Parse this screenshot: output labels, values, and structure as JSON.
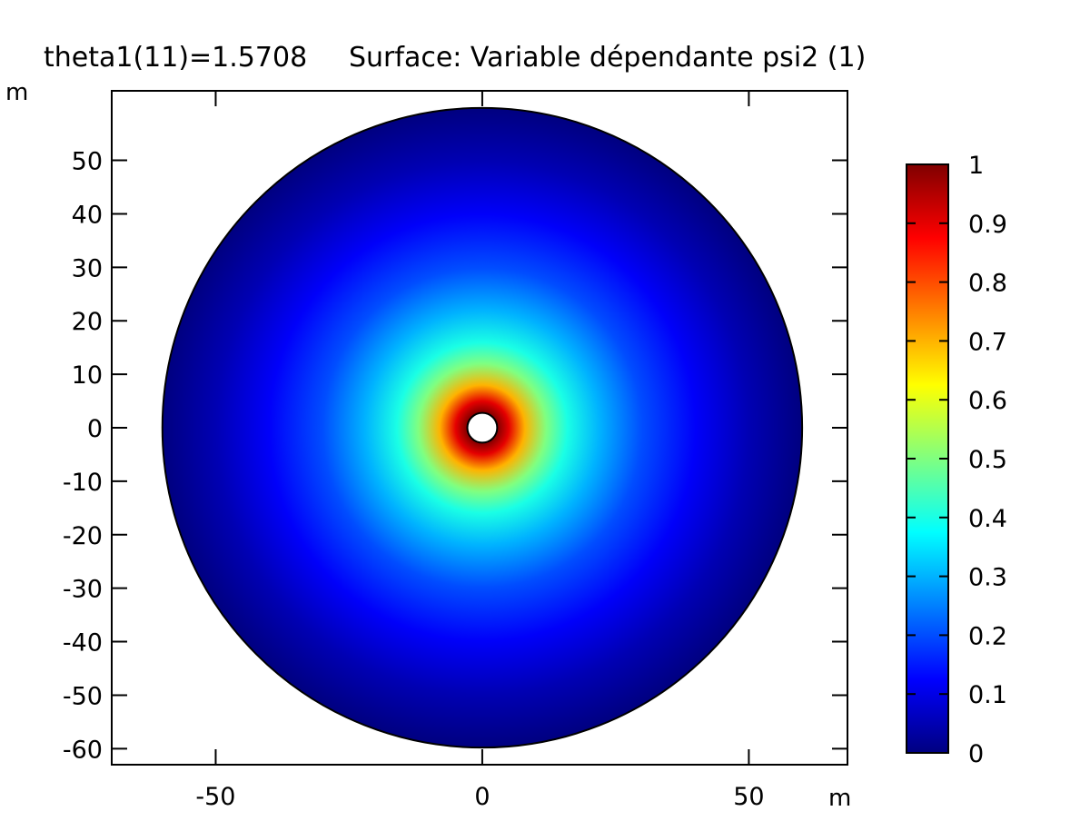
{
  "chart_data": {
    "type": "heatmap",
    "title": "theta1(11)=1.5708",
    "subtitle": "Surface: Variable dépendante psi2 (1)",
    "xlabel": "m",
    "ylabel": "m",
    "xlim": [
      -69.5,
      68.5
    ],
    "ylim": [
      -63,
      63
    ],
    "x_ticks": [
      -50,
      0,
      50
    ],
    "y_ticks": [
      -60,
      -50,
      -40,
      -30,
      -20,
      -10,
      0,
      10,
      20,
      30,
      40,
      50
    ],
    "domain": {
      "shape": "annulus",
      "center": [
        0,
        0
      ],
      "inner_radius": 2.8,
      "outer_radius": 60
    },
    "colorbar": {
      "colormap": "jet",
      "range": [
        0,
        1
      ],
      "ticks": [
        0,
        0.1,
        0.2,
        0.3,
        0.4,
        0.5,
        0.6,
        0.7,
        0.8,
        0.9,
        1
      ],
      "tick_labels": [
        "0",
        "0.1",
        "0.2",
        "0.3",
        "0.4",
        "0.5",
        "0.6",
        "0.7",
        "0.8",
        "0.9",
        "1"
      ]
    },
    "radial_profile": {
      "r": [
        2.8,
        5,
        8,
        12,
        16,
        22,
        30,
        40,
        50,
        60
      ],
      "value": [
        1.0,
        0.9,
        0.7,
        0.5,
        0.4,
        0.3,
        0.2,
        0.12,
        0.05,
        0.0
      ]
    }
  }
}
